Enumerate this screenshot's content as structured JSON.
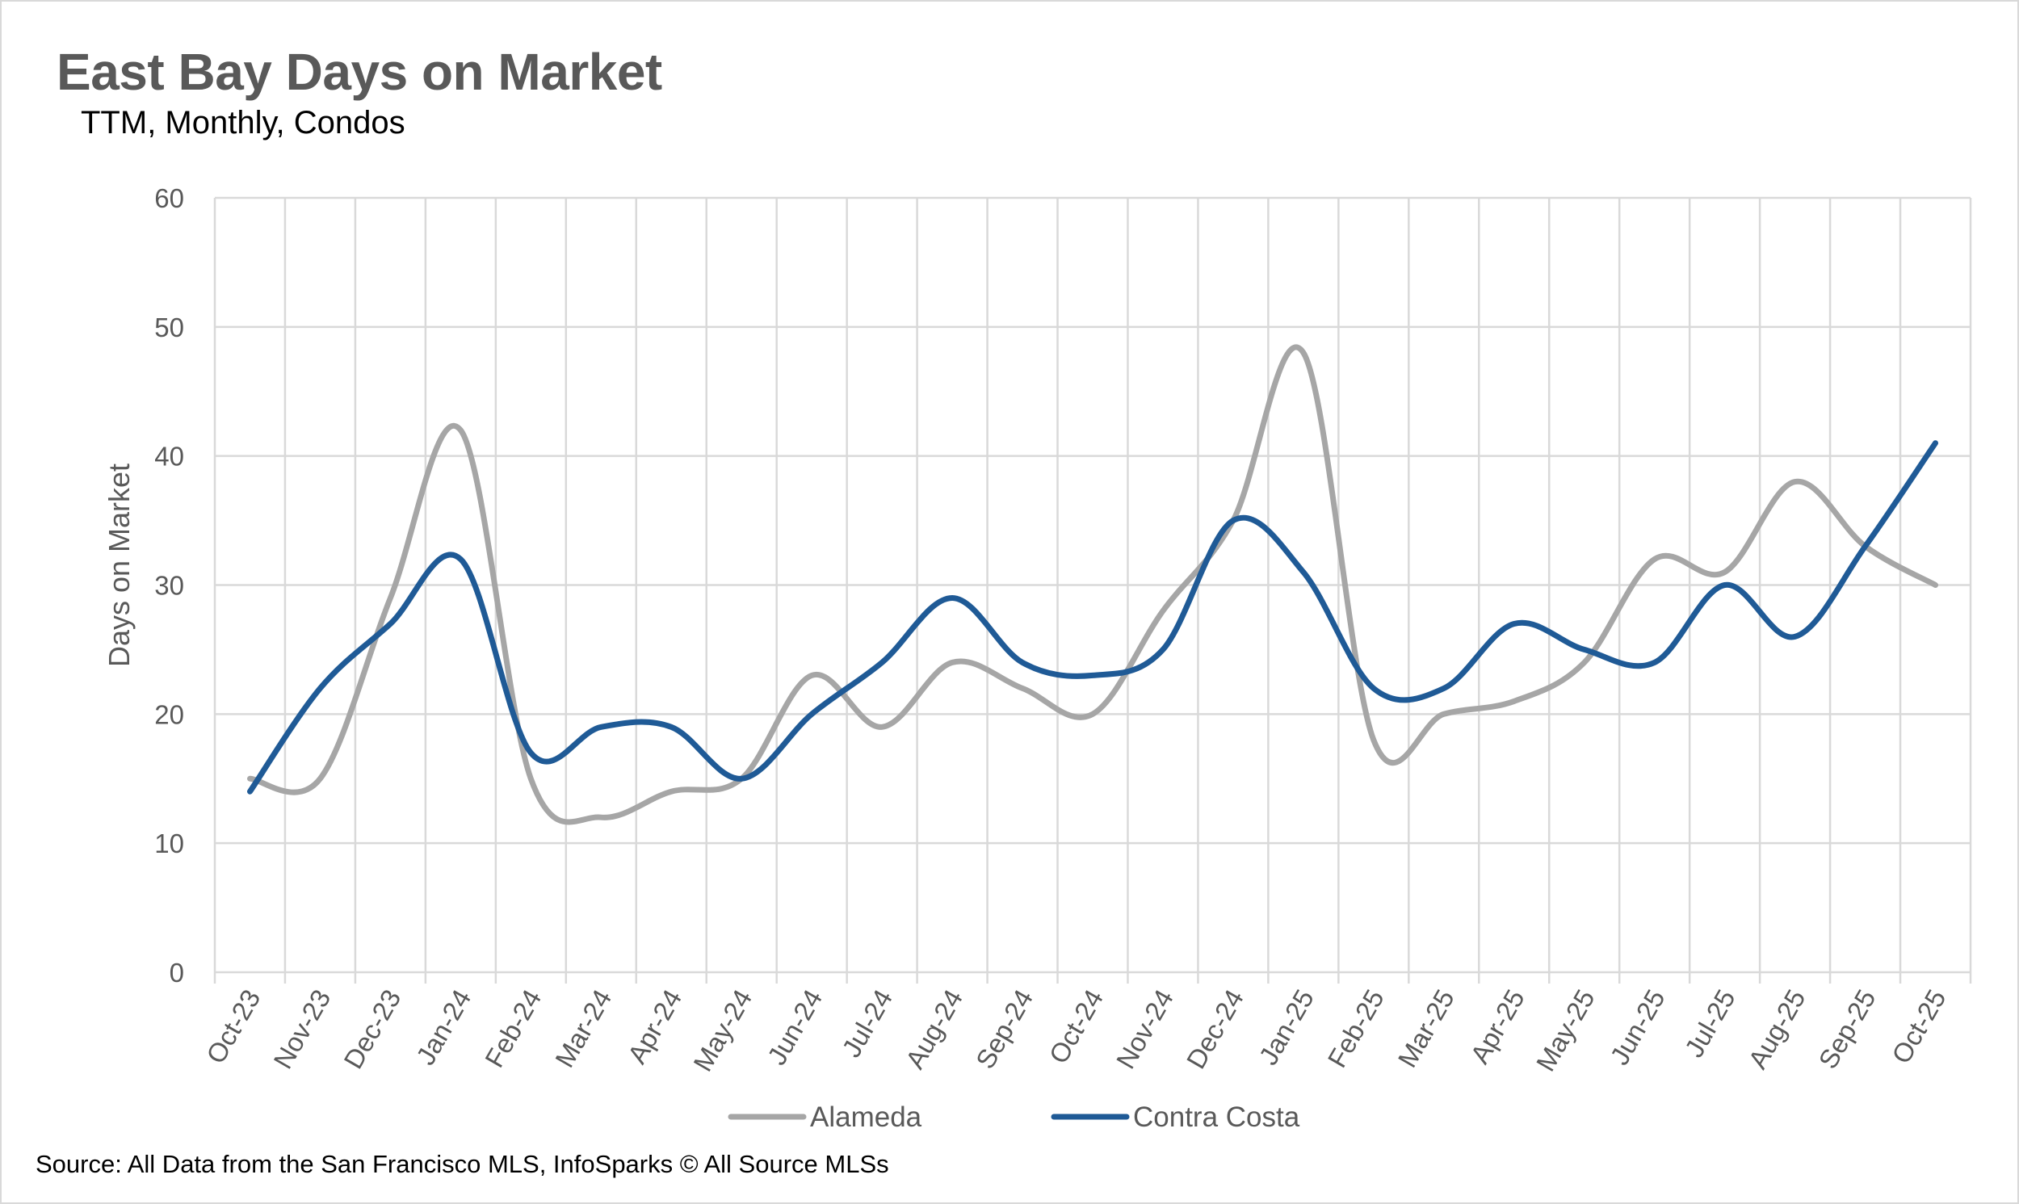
{
  "chart_data": {
    "type": "line",
    "title": "East Bay Days on Market",
    "subtitle": "TTM, Monthly, Condos",
    "ylabel": "Days on Market",
    "xlabel": "",
    "ylim": [
      0,
      60
    ],
    "yticks": [
      0,
      10,
      20,
      30,
      40,
      50,
      60
    ],
    "grid": true,
    "legend_position": "bottom",
    "categories": [
      "Oct-23",
      "Nov-23",
      "Dec-23",
      "Jan-24",
      "Feb-24",
      "Mar-24",
      "Apr-24",
      "May-24",
      "Jun-24",
      "Jul-24",
      "Aug-24",
      "Sep-24",
      "Oct-24",
      "Nov-24",
      "Dec-24",
      "Jan-25",
      "Feb-25",
      "Mar-25",
      "Apr-25",
      "May-25",
      "Jun-25",
      "Jul-25",
      "Aug-25",
      "Sep-25",
      "Oct-25"
    ],
    "series": [
      {
        "name": "Alameda",
        "color": "#a6a6a6",
        "values": [
          15,
          15,
          29,
          42,
          15,
          12,
          14,
          15,
          23,
          19,
          24,
          22,
          20,
          28,
          35,
          48,
          18,
          20,
          21,
          24,
          32,
          31,
          38,
          33,
          30
        ]
      },
      {
        "name": "Contra Costa",
        "color": "#1f5a96",
        "values": [
          14,
          22,
          27,
          32,
          17,
          19,
          19,
          15,
          20,
          24,
          29,
          24,
          23,
          25,
          35,
          31,
          22,
          22,
          27,
          25,
          24,
          30,
          26,
          33,
          41
        ]
      }
    ],
    "source": "Source: All Data from the San Francisco MLS, InfoSparks © All Source MLSs"
  },
  "colors": {
    "title": "#595959",
    "gridline": "#d9d9d9",
    "axis_text": "#595959"
  }
}
